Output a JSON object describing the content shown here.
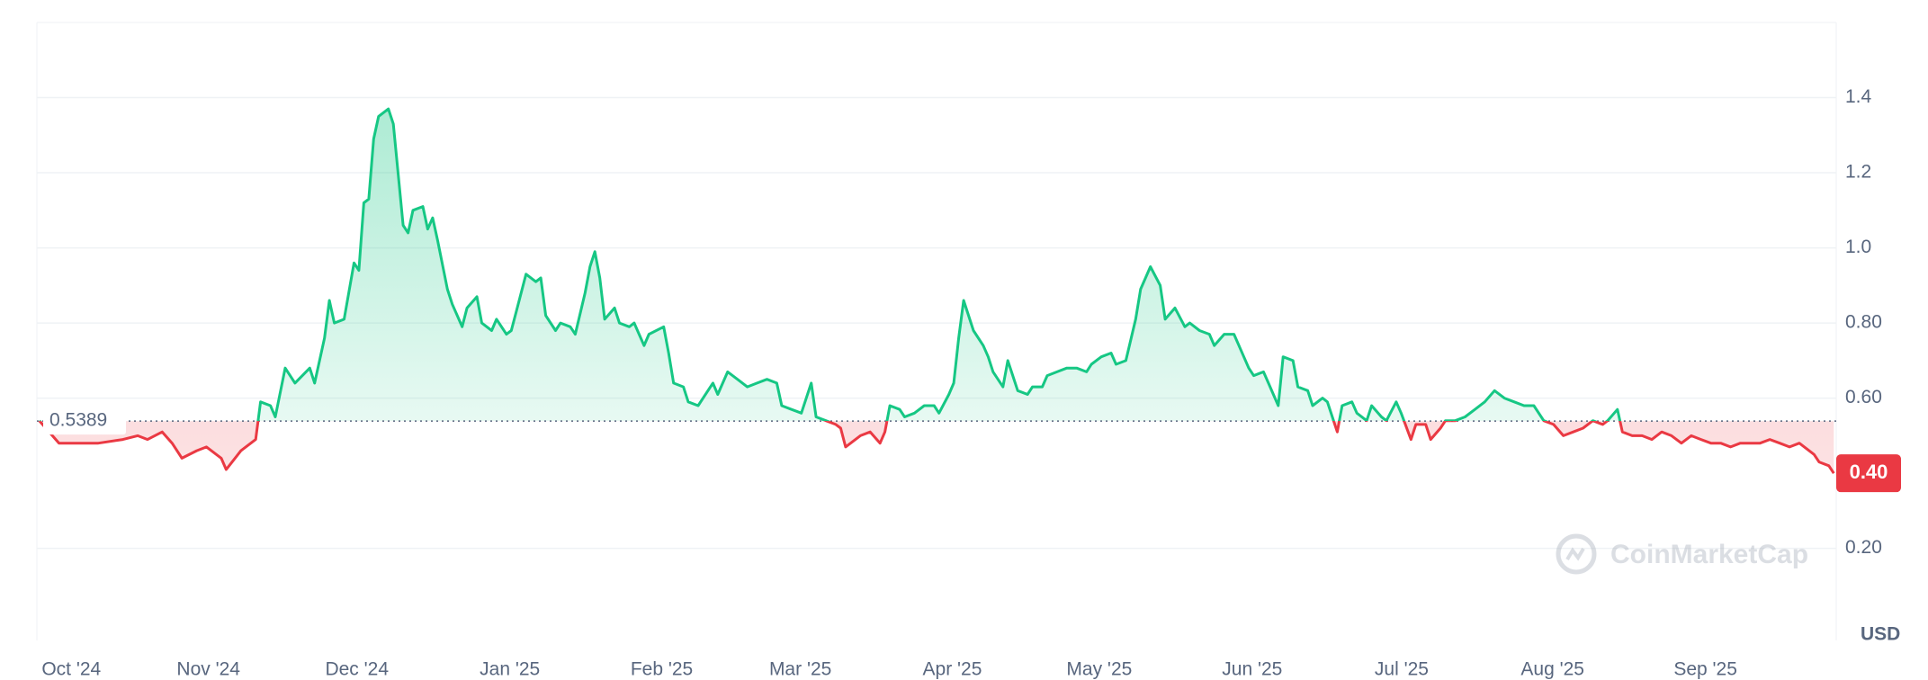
{
  "chart_data": {
    "type": "line",
    "x": [
      0,
      4,
      7,
      12,
      17,
      20,
      22,
      25,
      27,
      29,
      32,
      34,
      37,
      38,
      41,
      44,
      45,
      47,
      48,
      50,
      52,
      55,
      56,
      58,
      59,
      60,
      62,
      64,
      65,
      66,
      67,
      68,
      69,
      71,
      72,
      74,
      75,
      76,
      78,
      79,
      80,
      81,
      83,
      84,
      86,
      87,
      89,
      90,
      92,
      93,
      95,
      96,
      97,
      99,
      101,
      102,
      103,
      105,
      106,
      108,
      109,
      111,
      112,
      113,
      114,
      115,
      117,
      118,
      120,
      121,
      123,
      124,
      127,
      128,
      129,
      131,
      132,
      134,
      136,
      137,
      138,
      140,
      142,
      144,
      146,
      148,
      150,
      151,
      153,
      155,
      157,
      158,
      160,
      162,
      163,
      164,
      167,
      169,
      171,
      172,
      173,
      175,
      176,
      178,
      180,
      182,
      183,
      185,
      186,
      187,
      188,
      190,
      192,
      193,
      194,
      196,
      197,
      199,
      201,
      202,
      204,
      205,
      207,
      209,
      211,
      213,
      214,
      216,
      218,
      219,
      221,
      223,
      224,
      226,
      228,
      229,
      231,
      233,
      234,
      236,
      238,
      239,
      241,
      243,
      244,
      246,
      247,
      249,
      250,
      252,
      253,
      255,
      256,
      258,
      259,
      261,
      262,
      264,
      265,
      267,
      268,
      270,
      271,
      273,
      274,
      276,
      277,
      279,
      280,
      282,
      283,
      285,
      286,
      288,
      290,
      292,
      294,
      296,
      298,
      300,
      302,
      304,
      306,
      308,
      310,
      312,
      314,
      316,
      318,
      319,
      321,
      322,
      324,
      326,
      328,
      330,
      332,
      334,
      336,
      338,
      340,
      342,
      344,
      346,
      348,
      350,
      352,
      354,
      356,
      358,
      361,
      362,
      364,
      365
    ],
    "series": [
      {
        "color": "#16c784",
        "below_color": "#ea3943",
        "values": [
          0.54,
          0.48,
          0.48,
          0.48,
          0.49,
          0.5,
          0.49,
          0.51,
          0.48,
          0.44,
          0.46,
          0.47,
          0.44,
          0.41,
          0.46,
          0.49,
          0.59,
          0.58,
          0.55,
          0.68,
          0.64,
          0.68,
          0.64,
          0.76,
          0.86,
          0.8,
          0.81,
          0.96,
          0.94,
          1.12,
          1.13,
          1.29,
          1.35,
          1.37,
          1.33,
          1.06,
          1.04,
          1.1,
          1.11,
          1.05,
          1.08,
          1.02,
          0.89,
          0.85,
          0.79,
          0.84,
          0.87,
          0.8,
          0.78,
          0.81,
          0.77,
          0.78,
          0.83,
          0.93,
          0.91,
          0.92,
          0.82,
          0.78,
          0.8,
          0.79,
          0.77,
          0.88,
          0.95,
          0.99,
          0.92,
          0.81,
          0.84,
          0.8,
          0.79,
          0.8,
          0.74,
          0.77,
          0.79,
          0.72,
          0.64,
          0.63,
          0.59,
          0.58,
          0.62,
          0.64,
          0.61,
          0.67,
          0.65,
          0.63,
          0.64,
          0.65,
          0.64,
          0.58,
          0.57,
          0.56,
          0.64,
          0.55,
          0.54,
          0.53,
          0.52,
          0.47,
          0.5,
          0.51,
          0.48,
          0.51,
          0.58,
          0.57,
          0.55,
          0.56,
          0.58,
          0.58,
          0.56,
          0.61,
          0.64,
          0.76,
          0.86,
          0.78,
          0.74,
          0.71,
          0.67,
          0.63,
          0.7,
          0.62,
          0.61,
          0.63,
          0.63,
          0.66,
          0.67,
          0.68,
          0.68,
          0.67,
          0.69,
          0.71,
          0.72,
          0.69,
          0.7,
          0.81,
          0.89,
          0.95,
          0.9,
          0.81,
          0.84,
          0.79,
          0.8,
          0.78,
          0.77,
          0.74,
          0.77,
          0.77,
          0.74,
          0.68,
          0.66,
          0.67,
          0.64,
          0.58,
          0.71,
          0.7,
          0.63,
          0.62,
          0.58,
          0.6,
          0.59,
          0.51,
          0.58,
          0.59,
          0.56,
          0.54,
          0.58,
          0.55,
          0.54,
          0.59,
          0.56,
          0.49,
          0.53,
          0.53,
          0.49,
          0.52,
          0.54,
          0.54,
          0.55,
          0.57,
          0.59,
          0.62,
          0.6,
          0.59,
          0.58,
          0.58,
          0.54,
          0.53,
          0.5,
          0.51,
          0.52,
          0.54,
          0.53,
          0.54,
          0.57,
          0.51,
          0.5,
          0.5,
          0.49,
          0.51,
          0.5,
          0.48,
          0.5,
          0.49,
          0.48,
          0.48,
          0.47,
          0.48,
          0.48,
          0.48,
          0.49,
          0.48,
          0.47,
          0.48,
          0.45,
          0.43,
          0.42,
          0.4
        ]
      }
    ],
    "current_label": "0.40",
    "baseline": 0.5389,
    "xlim": [
      -0.5,
      365.5
    ],
    "xticks": [
      {
        "value": 6.5,
        "label": "Oct '24"
      },
      {
        "value": 34.4,
        "label": "Nov '24"
      },
      {
        "value": 64.6,
        "label": "Dec '24"
      },
      {
        "value": 95.7,
        "label": "Jan '25"
      },
      {
        "value": 126.6,
        "label": "Feb '25"
      },
      {
        "value": 154.8,
        "label": "Mar '25"
      },
      {
        "value": 185.7,
        "label": "Apr '25"
      },
      {
        "value": 215.6,
        "label": "May '25"
      },
      {
        "value": 246.7,
        "label": "Jun '25"
      },
      {
        "value": 277.1,
        "label": "Jul '25"
      },
      {
        "value": 307.8,
        "label": "Aug '25"
      },
      {
        "value": 338.9,
        "label": "Sep '25"
      }
    ],
    "ylim": [
      -0.045,
      1.6
    ],
    "yticks": [
      {
        "value": 0.2,
        "label": "0.20"
      },
      {
        "value": 0.6,
        "label": "0.60"
      },
      {
        "value": 0.8,
        "label": "0.80"
      },
      {
        "value": 1,
        "label": "1.0"
      },
      1.2,
      1.4
    ],
    "grid": true,
    "y_unit": "USD",
    "watermark": "CoinMarketCap"
  }
}
